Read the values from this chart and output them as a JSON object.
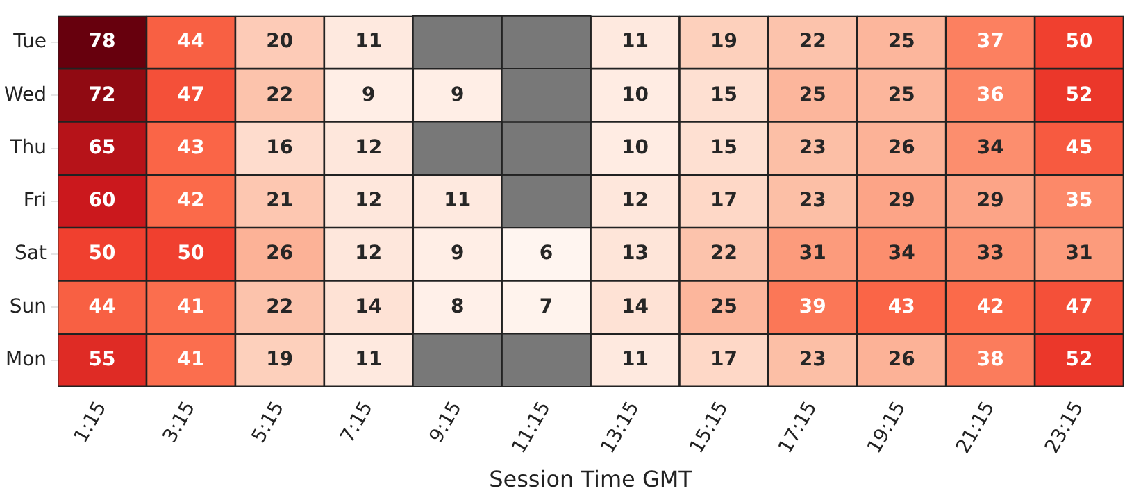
{
  "chart_data": {
    "type": "heatmap",
    "xlabel": "Session Time GMT",
    "categories": [
      "1:15",
      "3:15",
      "5:15",
      "7:15",
      "9:15",
      "11:15",
      "13:15",
      "15:15",
      "17:15",
      "19:15",
      "21:15",
      "23:15"
    ],
    "y_categories": [
      "Tue",
      "Wed",
      "Thu",
      "Fri",
      "Sat",
      "Sun",
      "Mon"
    ],
    "cells": [
      [
        78,
        44,
        20,
        11,
        null,
        null,
        11,
        19,
        22,
        25,
        37,
        50
      ],
      [
        72,
        47,
        22,
        9,
        9,
        null,
        10,
        15,
        25,
        25,
        36,
        52
      ],
      [
        65,
        43,
        16,
        12,
        null,
        null,
        10,
        15,
        23,
        26,
        34,
        45
      ],
      [
        60,
        42,
        21,
        12,
        11,
        null,
        12,
        17,
        23,
        29,
        29,
        35
      ],
      [
        50,
        50,
        26,
        12,
        9,
        6,
        13,
        22,
        31,
        34,
        33,
        31
      ],
      [
        44,
        41,
        22,
        14,
        8,
        7,
        14,
        25,
        39,
        43,
        42,
        47
      ],
      [
        55,
        41,
        19,
        11,
        null,
        null,
        11,
        17,
        23,
        26,
        38,
        52
      ]
    ],
    "data_labels": true
  }
}
